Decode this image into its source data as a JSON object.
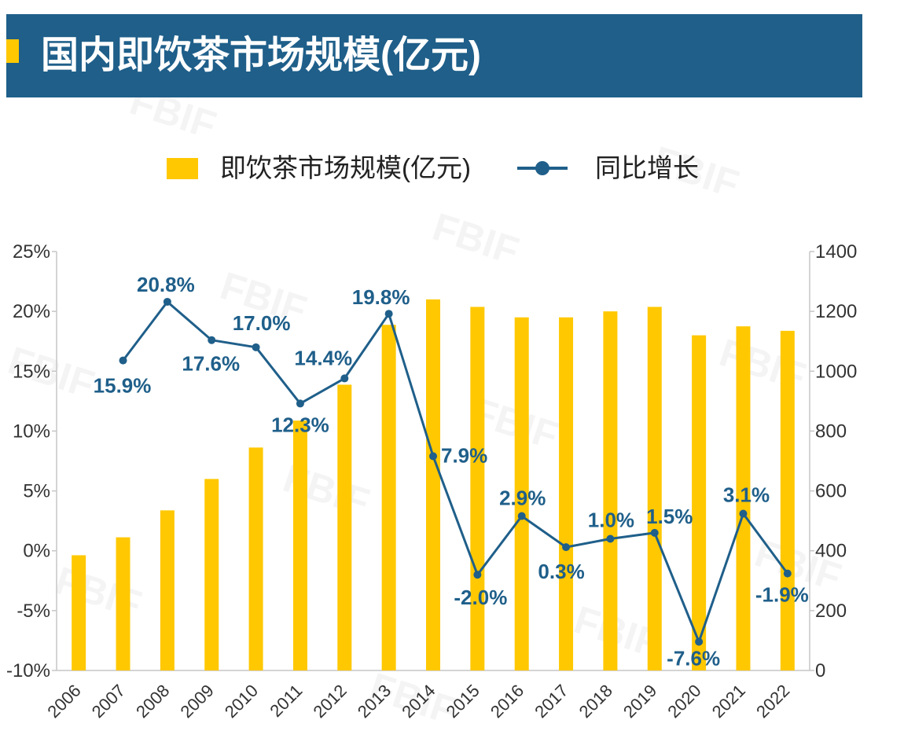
{
  "colors": {
    "header_bg": "#1F5F8A",
    "header_mark": "#FFC800"
  },
  "watermark": "FBIF",
  "chart_data": {
    "type": "bar",
    "title": "国内即饮茶市场规模(亿元)",
    "legend": "top-center",
    "grid": false,
    "categories": [
      "2006",
      "2007",
      "2008",
      "2009",
      "2010",
      "2011",
      "2012",
      "2013",
      "2014",
      "2015",
      "2016",
      "2017",
      "2018",
      "2019",
      "2020",
      "2021",
      "2022"
    ],
    "series": [
      {
        "name": "即饮茶市场规模(亿元)",
        "type": "bar",
        "axis": "right",
        "color": "#FFC800",
        "values": [
          385,
          445,
          535,
          640,
          745,
          835,
          955,
          1155,
          1240,
          1215,
          1180,
          1180,
          1200,
          1215,
          1120,
          1150,
          1135
        ]
      },
      {
        "name": "同比增长",
        "type": "line",
        "axis": "left",
        "color": "#1F5F8A",
        "values": [
          null,
          15.9,
          20.8,
          17.6,
          17.0,
          12.3,
          14.4,
          19.8,
          7.9,
          -2.0,
          2.9,
          0.3,
          1.0,
          1.5,
          -7.6,
          3.1,
          -1.9
        ],
        "labels": [
          null,
          "15.9%",
          "20.8%",
          "17.6%",
          "17.0%",
          "12.3%",
          "14.4%",
          "19.8%",
          "7.9%",
          "-2.0%",
          "2.9%",
          "0.3%",
          "1.0%",
          "1.5%",
          "-7.6%",
          "3.1%",
          "-1.9%"
        ]
      }
    ],
    "y_left": {
      "range": [
        -10,
        25
      ],
      "ticks": [
        "25%",
        "20%",
        "15%",
        "10%",
        "5%",
        "0%",
        "-5%",
        "-10%"
      ]
    },
    "y_right": {
      "range": [
        0,
        1400
      ],
      "ticks": [
        "1400",
        "1200",
        "1000",
        "800",
        "600",
        "400",
        "200",
        "0"
      ]
    }
  }
}
